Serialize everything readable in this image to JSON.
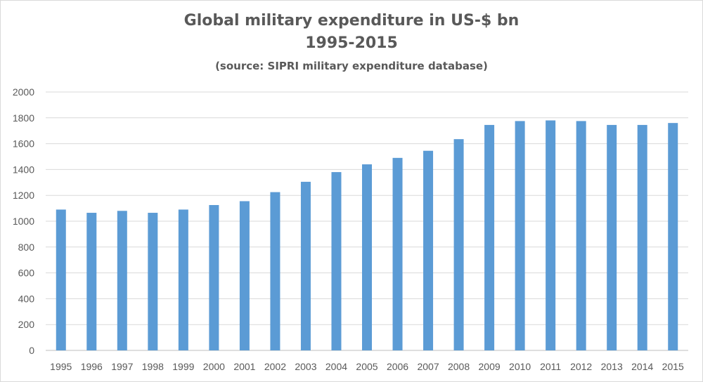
{
  "chart_data": {
    "type": "bar",
    "title_line1": "Global military expenditure in US-$  bn",
    "title_line2": "1995-2015",
    "subtitle": "(source: SIPRI military expenditure database)",
    "xlabel": "",
    "ylabel": "",
    "ylim": [
      0,
      2000
    ],
    "yticks": [
      0,
      200,
      400,
      600,
      800,
      1000,
      1200,
      1400,
      1600,
      1800,
      2000
    ],
    "grid": true,
    "legend": "none",
    "bar_color": "#5b9bd5",
    "categories": [
      "1995",
      "1996",
      "1997",
      "1998",
      "1999",
      "2000",
      "2001",
      "2002",
      "2003",
      "2004",
      "2005",
      "2006",
      "2007",
      "2008",
      "2009",
      "2010",
      "2011",
      "2012",
      "2013",
      "2014",
      "2015"
    ],
    "values": [
      1090,
      1065,
      1080,
      1065,
      1090,
      1125,
      1155,
      1225,
      1305,
      1380,
      1440,
      1490,
      1545,
      1635,
      1745,
      1775,
      1780,
      1775,
      1745,
      1745,
      1760
    ]
  }
}
